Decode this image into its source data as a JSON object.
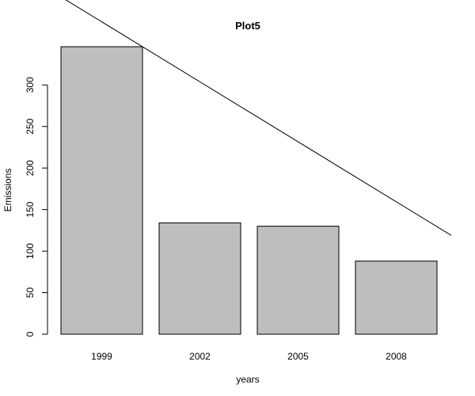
{
  "chart_data": {
    "type": "bar",
    "title": "Plot5",
    "xlabel": "years",
    "ylabel": "Emissions",
    "categories": [
      "1999",
      "2002",
      "2005",
      "2008"
    ],
    "values": [
      346,
      134,
      130,
      88
    ],
    "ylim": [
      0,
      346
    ],
    "yticks": [
      0,
      50,
      100,
      150,
      200,
      250,
      300
    ],
    "colors": {
      "bar_fill": "#bebebe",
      "bar_stroke": "#000000",
      "line": "#000000"
    },
    "trend_line": {
      "intercept": 376,
      "slope": -72.2
    }
  }
}
